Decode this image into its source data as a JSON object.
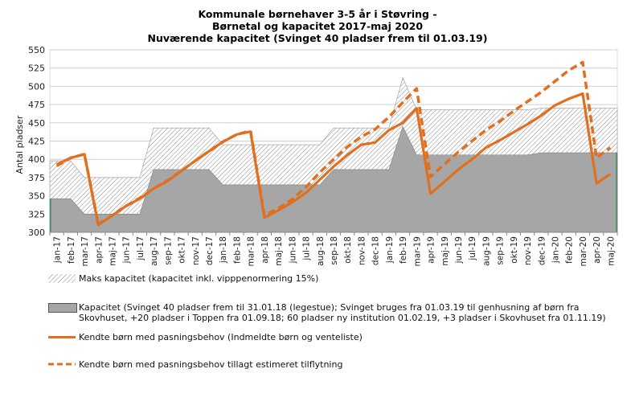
{
  "chart_data": {
    "type": "area",
    "title_lines": [
      "Kommunale børnehaver 3-5 år i Støvring -",
      "Børnetal og kapacitet 2017-maj 2020",
      "Nuværende kapacitet (Svinget 40 pladser frem til 01.03.19)"
    ],
    "ylabel": "Antal pladser",
    "ylim": [
      300,
      550
    ],
    "yticks": [
      300,
      325,
      350,
      375,
      400,
      425,
      450,
      475,
      500,
      525,
      550
    ],
    "grid": true,
    "legend_position": "bottom",
    "categories": [
      "jan-17",
      "feb-17",
      "mar-17",
      "apr-17",
      "maj-17",
      "jun-17",
      "jul-17",
      "aug-17",
      "sep-17",
      "okt-17",
      "nov-17",
      "dec-17",
      "jan-18",
      "feb-18",
      "mar-18",
      "apr-18",
      "maj-18",
      "jun-18",
      "jul-18",
      "aug-18",
      "sep-18",
      "okt-18",
      "nov-18",
      "dec-18",
      "jan-19",
      "feb-19",
      "mar-19",
      "apr-19",
      "maj-19",
      "jun-19",
      "jul-19",
      "aug-19",
      "sep-19",
      "okt-19",
      "nov-19",
      "dec-19",
      "jan-20",
      "feb-20",
      "mar-20",
      "apr-20",
      "maj-20"
    ],
    "series": [
      {
        "name": "Maks kapacitet (kapacitet inkl. vipppenormering 15%)",
        "style": "hatched-area",
        "values": [
          398,
          398,
          375,
          375,
          375,
          375,
          375,
          443,
          443,
          443,
          443,
          443,
          420,
          420,
          420,
          420,
          420,
          420,
          420,
          420,
          443,
          443,
          443,
          443,
          443,
          512,
          468,
          468,
          468,
          468,
          468,
          468,
          468,
          468,
          468,
          470,
          470,
          470,
          470,
          470,
          470
        ]
      },
      {
        "name": "Kapacitet (Svinget 40 pladser frem til 31.01.18 (legestue); Svinget bruges fra 01.03.19 til genhusning af børn fra Skovhuset, +20 pladser i Toppen fra 01.09.18; 60 pladser ny institution 01.02.19, +3 pladser i Skovhuset fra 01.11.19)",
        "legend_lines": [
          "Kapacitet (Svinget 40 pladser frem til 31.01.18 (legestue); Svinget bruges fra 01.03.19 til genhusning af børn fra",
          "Skovhuset, +20 pladser i Toppen fra 01.09.18; 60 pladser ny institution 01.02.19, +3 pladser i Skovhuset fra 01.11.19)"
        ],
        "style": "gray-area",
        "values": [
          346,
          346,
          325,
          325,
          325,
          325,
          325,
          386,
          386,
          386,
          386,
          386,
          365,
          365,
          365,
          365,
          365,
          365,
          365,
          365,
          386,
          386,
          386,
          386,
          386,
          445,
          406,
          406,
          406,
          406,
          406,
          406,
          406,
          406,
          406,
          409,
          409,
          409,
          409,
          409,
          409
        ]
      },
      {
        "name": "Kendte børn med pasningsbehov (Indmeldte børn og venteliste)",
        "style": "solid-line",
        "values": [
          393,
          402,
          407,
          310,
          323,
          336,
          346,
          360,
          370,
          384,
          398,
          411,
          424,
          434,
          438,
          320,
          330,
          341,
          354,
          372,
          390,
          406,
          420,
          423,
          440,
          450,
          470,
          353,
          369,
          386,
          400,
          416,
          426,
          437,
          448,
          460,
          474,
          483,
          490,
          367,
          380
        ]
      },
      {
        "name": "Kendte børn med pasningsbehov tillagt estimeret tilflytning",
        "style": "dashed-line",
        "values": [
          391,
          402,
          407,
          311,
          323,
          336,
          347,
          360,
          371,
          384,
          398,
          411,
          424,
          434,
          439,
          323,
          333,
          345,
          362,
          382,
          400,
          417,
          431,
          441,
          458,
          478,
          497,
          376,
          393,
          410,
          425,
          440,
          452,
          466,
          479,
          492,
          507,
          522,
          533,
          402,
          416
        ]
      }
    ]
  },
  "colors": {
    "gray_area": "#a6a6a6",
    "orange_line": "#e07020",
    "grid": "#d0d0d0",
    "axis_text": "#222222"
  }
}
